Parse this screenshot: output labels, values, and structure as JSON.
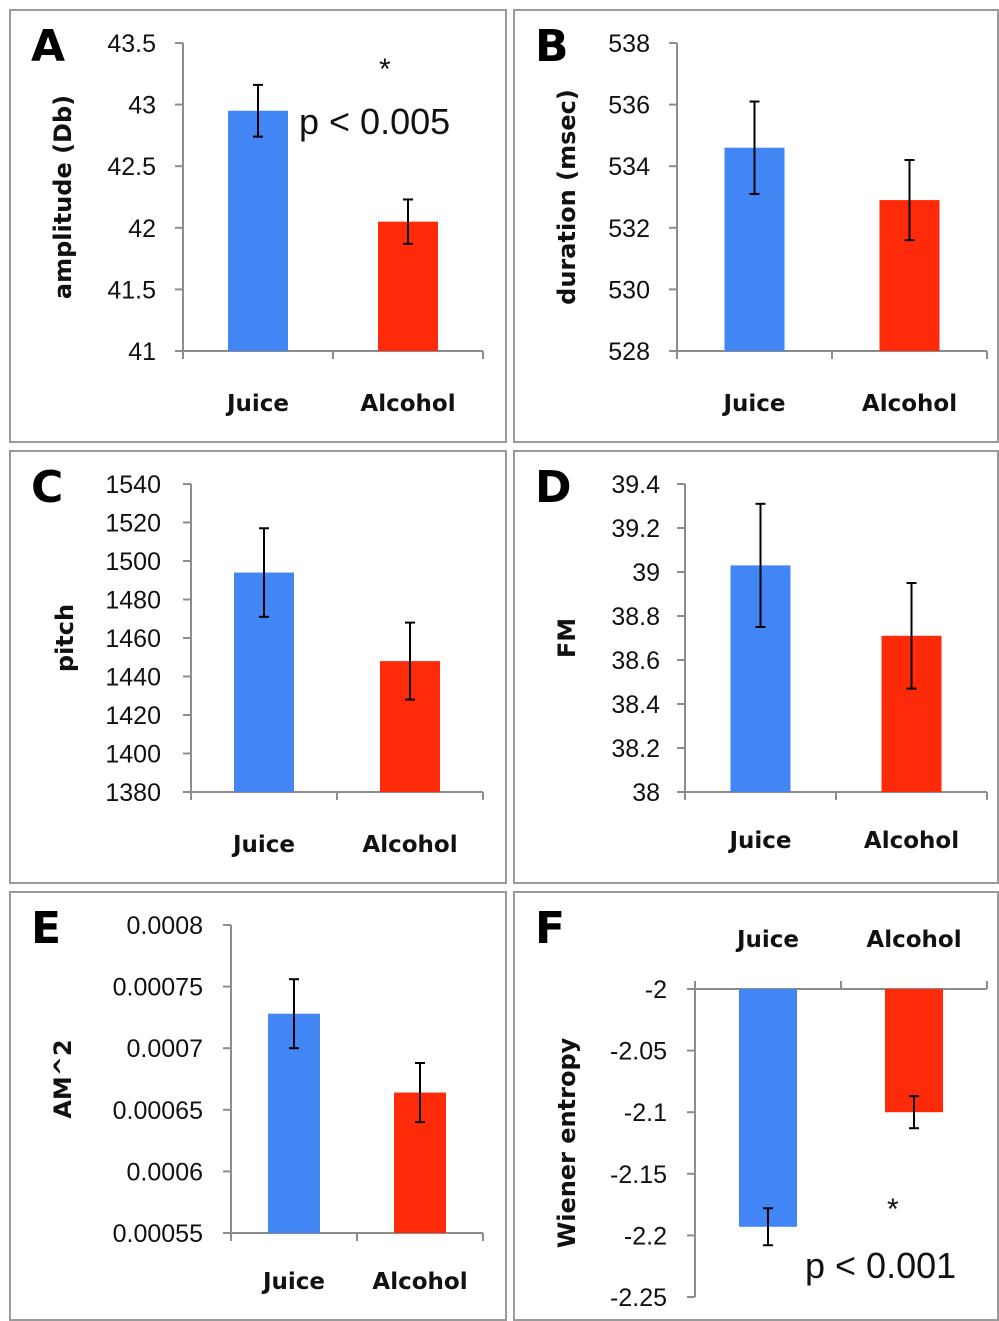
{
  "chart_data": [
    {
      "panel": "A",
      "type": "bar",
      "categories": [
        "Juice",
        "Alcohol"
      ],
      "series": [
        {
          "values": [
            42.95,
            42.05
          ],
          "errors": [
            0.21,
            0.18
          ],
          "colors": [
            "#4285f4",
            "#ff2a0a"
          ]
        }
      ],
      "ylabel": "amplitude (Db)",
      "ylim": [
        41,
        43.5
      ],
      "yticks": [
        "43.5",
        "43",
        "42.5",
        "42",
        "41.5",
        "41"
      ],
      "annotations": {
        "star": "*",
        "p_value": "p < 0.005"
      },
      "xaxis_position": "bottom"
    },
    {
      "panel": "B",
      "type": "bar",
      "categories": [
        "Juice",
        "Alcohol"
      ],
      "series": [
        {
          "values": [
            534.6,
            532.9
          ],
          "errors": [
            1.5,
            1.3
          ],
          "colors": [
            "#4285f4",
            "#ff2a0a"
          ]
        }
      ],
      "ylabel": "duration (msec)",
      "ylim": [
        528,
        538
      ],
      "yticks": [
        "538",
        "536",
        "534",
        "532",
        "530",
        "528"
      ],
      "xaxis_position": "bottom"
    },
    {
      "panel": "C",
      "type": "bar",
      "categories": [
        "Juice",
        "Alcohol"
      ],
      "series": [
        {
          "values": [
            1494,
            1448
          ],
          "errors": [
            23,
            20
          ],
          "colors": [
            "#4285f4",
            "#ff2a0a"
          ]
        }
      ],
      "ylabel": "pitch",
      "ylim": [
        1380,
        1540
      ],
      "yticks": [
        "1540",
        "1520",
        "1500",
        "1480",
        "1460",
        "1440",
        "1420",
        "1400",
        "1380"
      ],
      "xaxis_position": "bottom"
    },
    {
      "panel": "D",
      "type": "bar",
      "categories": [
        "Juice",
        "Alcohol"
      ],
      "series": [
        {
          "values": [
            39.03,
            38.71
          ],
          "errors": [
            0.28,
            0.24
          ],
          "colors": [
            "#4285f4",
            "#ff2a0a"
          ]
        }
      ],
      "ylabel": "FM",
      "ylim": [
        38,
        39.4
      ],
      "yticks": [
        "39.4",
        "39.2",
        "39",
        "38.8",
        "38.6",
        "38.4",
        "38.2",
        "38"
      ],
      "xaxis_position": "bottom"
    },
    {
      "panel": "E",
      "type": "bar",
      "categories": [
        "Juice",
        "Alcohol"
      ],
      "series": [
        {
          "values": [
            0.000728,
            0.000664
          ],
          "errors": [
            2.8e-05,
            2.4e-05
          ],
          "colors": [
            "#4285f4",
            "#ff2a0a"
          ]
        }
      ],
      "ylabel": "AM^2",
      "ylim": [
        0.00055,
        0.0008
      ],
      "yticks": [
        "0.0008",
        "0.00075",
        "0.0007",
        "0.00065",
        "0.0006",
        "0.00055"
      ],
      "xaxis_position": "bottom"
    },
    {
      "panel": "F",
      "type": "bar",
      "categories": [
        "Juice",
        "Alcohol"
      ],
      "series": [
        {
          "values": [
            -2.193,
            -2.1
          ],
          "errors": [
            0.015,
            0.013
          ],
          "colors": [
            "#4285f4",
            "#ff2a0a"
          ]
        }
      ],
      "ylabel": "Wiener entropy",
      "ylim": [
        -2.25,
        -2
      ],
      "yticks": [
        "-2",
        "-2.05",
        "-2.1",
        "-2.15",
        "-2.2",
        "-2.25"
      ],
      "annotations": {
        "star": "*",
        "p_value": "p < 0.001"
      },
      "xaxis_position": "top"
    }
  ]
}
